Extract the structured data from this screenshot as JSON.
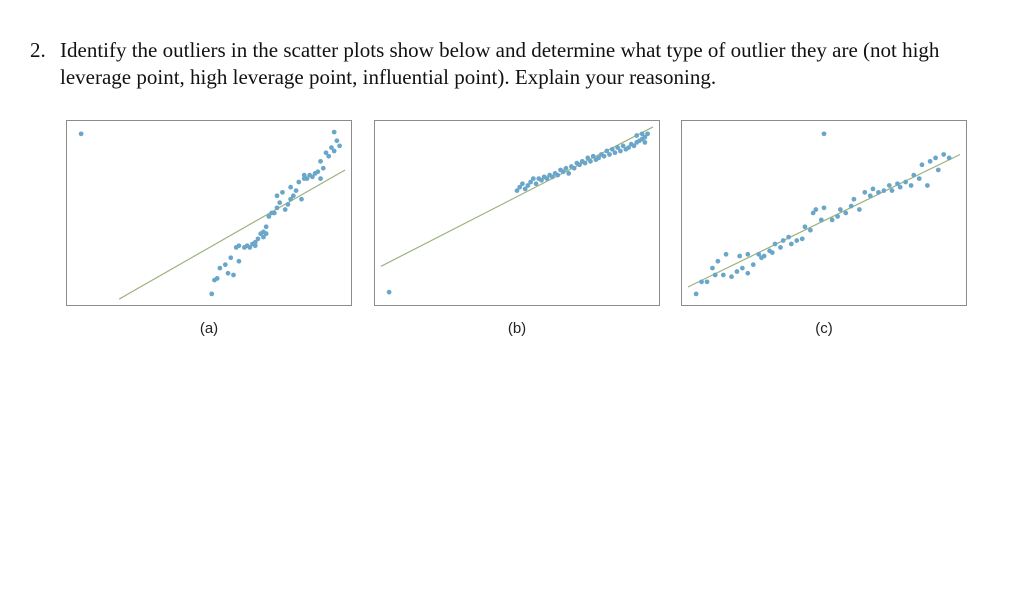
{
  "question": {
    "number": "2.",
    "text": "Identify the outliers in the scatter plots show below and determine what type of outlier they are (not high leverage point, high leverage point, influential point). Explain your reasoning."
  },
  "colors": {
    "point": "#6aa6c9",
    "fit_line": "#9bb27d",
    "frame": "#8c8c8c"
  },
  "chart_data": [
    {
      "type": "scatter",
      "caption": "(a)",
      "xlim": [
        0,
        100
      ],
      "ylim": [
        0,
        100
      ],
      "fit_line": {
        "x": [
          17,
          100
        ],
        "y": [
          0,
          75
        ]
      },
      "points": [
        [
          3,
          96
        ],
        [
          51,
          3
        ],
        [
          52,
          11
        ],
        [
          53,
          12
        ],
        [
          54,
          18
        ],
        [
          56,
          20
        ],
        [
          57,
          15
        ],
        [
          58,
          24
        ],
        [
          59,
          14
        ],
        [
          60,
          30
        ],
        [
          61,
          22
        ],
        [
          61,
          31
        ],
        [
          63,
          30
        ],
        [
          64,
          31
        ],
        [
          65,
          30
        ],
        [
          66,
          32
        ],
        [
          67,
          31
        ],
        [
          67,
          33
        ],
        [
          68,
          35
        ],
        [
          69,
          38
        ],
        [
          70,
          39
        ],
        [
          70,
          36
        ],
        [
          71,
          42
        ],
        [
          71,
          38
        ],
        [
          72,
          48
        ],
        [
          73,
          50
        ],
        [
          74,
          50
        ],
        [
          75,
          53
        ],
        [
          75,
          60
        ],
        [
          76,
          56
        ],
        [
          77,
          62
        ],
        [
          78,
          52
        ],
        [
          79,
          55
        ],
        [
          80,
          58
        ],
        [
          80,
          65
        ],
        [
          81,
          60
        ],
        [
          82,
          63
        ],
        [
          83,
          68
        ],
        [
          84,
          58
        ],
        [
          85,
          72
        ],
        [
          85,
          70
        ],
        [
          86,
          70
        ],
        [
          87,
          72
        ],
        [
          88,
          71
        ],
        [
          89,
          73
        ],
        [
          90,
          74
        ],
        [
          91,
          70
        ],
        [
          91,
          80
        ],
        [
          92,
          76
        ],
        [
          93,
          85
        ],
        [
          94,
          83
        ],
        [
          95,
          88
        ],
        [
          96,
          86
        ],
        [
          96,
          97
        ],
        [
          97,
          92
        ],
        [
          98,
          89
        ]
      ]
    },
    {
      "type": "scatter",
      "caption": "(b)",
      "xlim": [
        0,
        100
      ],
      "ylim": [
        0,
        100
      ],
      "fit_line": {
        "x": [
          0,
          100
        ],
        "y": [
          19,
          100
        ]
      },
      "points": [
        [
          3,
          4
        ],
        [
          50,
          63
        ],
        [
          51,
          65
        ],
        [
          52,
          67
        ],
        [
          53,
          64
        ],
        [
          54,
          66
        ],
        [
          55,
          68
        ],
        [
          56,
          70
        ],
        [
          57,
          67
        ],
        [
          58,
          70
        ],
        [
          59,
          69
        ],
        [
          60,
          71
        ],
        [
          61,
          70
        ],
        [
          62,
          72
        ],
        [
          63,
          71
        ],
        [
          64,
          73
        ],
        [
          65,
          72
        ],
        [
          66,
          75
        ],
        [
          67,
          74
        ],
        [
          68,
          76
        ],
        [
          69,
          73
        ],
        [
          70,
          77
        ],
        [
          71,
          76
        ],
        [
          72,
          79
        ],
        [
          73,
          78
        ],
        [
          74,
          80
        ],
        [
          75,
          79
        ],
        [
          76,
          82
        ],
        [
          77,
          80
        ],
        [
          78,
          83
        ],
        [
          79,
          81
        ],
        [
          80,
          82
        ],
        [
          81,
          84
        ],
        [
          82,
          83
        ],
        [
          83,
          86
        ],
        [
          84,
          84
        ],
        [
          85,
          87
        ],
        [
          86,
          85
        ],
        [
          87,
          88
        ],
        [
          88,
          86
        ],
        [
          89,
          89
        ],
        [
          90,
          87
        ],
        [
          91,
          88
        ],
        [
          92,
          90
        ],
        [
          93,
          89
        ],
        [
          94,
          91
        ],
        [
          95,
          92
        ],
        [
          96,
          93
        ],
        [
          97,
          91
        ],
        [
          94,
          95
        ],
        [
          96,
          96
        ],
        [
          97,
          94
        ],
        [
          98,
          96
        ]
      ]
    },
    {
      "type": "scatter",
      "caption": "(c)",
      "xlim": [
        0,
        100
      ],
      "ylim": [
        0,
        100
      ],
      "fit_line": {
        "x": [
          0,
          100
        ],
        "y": [
          7,
          84
        ]
      },
      "points": [
        [
          50,
          96
        ],
        [
          3,
          3
        ],
        [
          5,
          10
        ],
        [
          7,
          10
        ],
        [
          9,
          18
        ],
        [
          10,
          14
        ],
        [
          11,
          22
        ],
        [
          13,
          14
        ],
        [
          14,
          26
        ],
        [
          16,
          13
        ],
        [
          18,
          16
        ],
        [
          19,
          25
        ],
        [
          20,
          18
        ],
        [
          22,
          26
        ],
        [
          22,
          15
        ],
        [
          24,
          20
        ],
        [
          26,
          26
        ],
        [
          27,
          24
        ],
        [
          28,
          25
        ],
        [
          30,
          28
        ],
        [
          31,
          27
        ],
        [
          32,
          32
        ],
        [
          34,
          30
        ],
        [
          35,
          34
        ],
        [
          37,
          36
        ],
        [
          38,
          32
        ],
        [
          40,
          34
        ],
        [
          42,
          35
        ],
        [
          43,
          42
        ],
        [
          45,
          40
        ],
        [
          46,
          50
        ],
        [
          47,
          52
        ],
        [
          49,
          46
        ],
        [
          50,
          53
        ],
        [
          53,
          46
        ],
        [
          55,
          48
        ],
        [
          56,
          52
        ],
        [
          58,
          50
        ],
        [
          60,
          54
        ],
        [
          61,
          58
        ],
        [
          63,
          52
        ],
        [
          65,
          62
        ],
        [
          67,
          60
        ],
        [
          68,
          64
        ],
        [
          70,
          62
        ],
        [
          72,
          63
        ],
        [
          74,
          66
        ],
        [
          75,
          63
        ],
        [
          77,
          67
        ],
        [
          78,
          65
        ],
        [
          80,
          68
        ],
        [
          82,
          66
        ],
        [
          83,
          72
        ],
        [
          85,
          70
        ],
        [
          86,
          78
        ],
        [
          88,
          66
        ],
        [
          89,
          80
        ],
        [
          91,
          82
        ],
        [
          92,
          75
        ],
        [
          94,
          84
        ],
        [
          96,
          82
        ]
      ]
    }
  ]
}
